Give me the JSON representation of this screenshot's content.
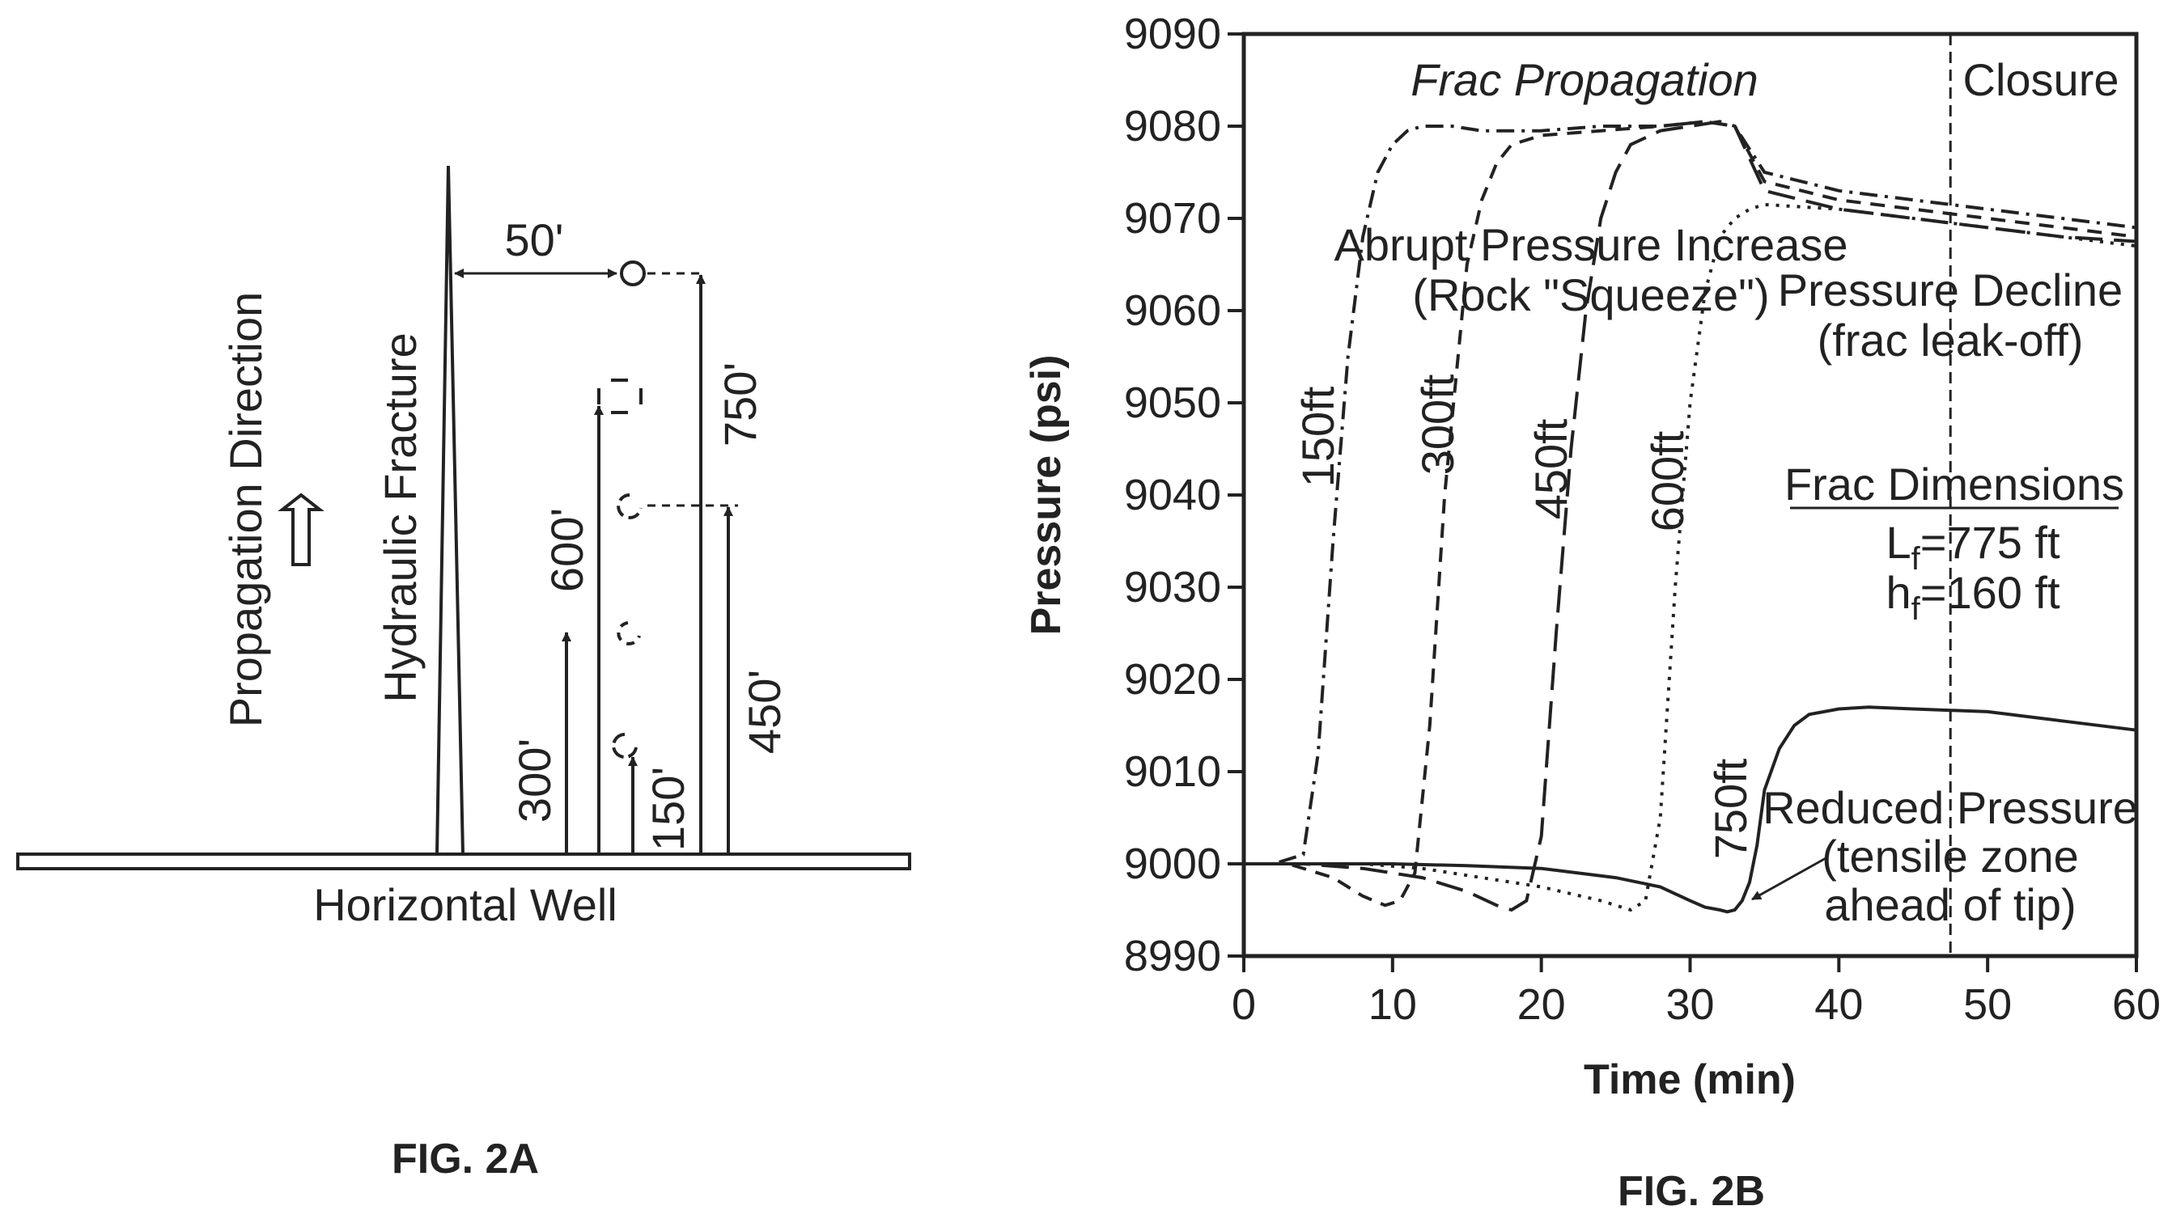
{
  "fig2a": {
    "propagation_direction": "Propagation Direction",
    "hydraulic_fracture": "Hydraulic Fracture",
    "horizontal_well": "Horizontal Well",
    "offset_label": "50'",
    "gauge_labels": [
      "150'",
      "300'",
      "450'",
      "600'",
      "750'"
    ],
    "caption": "FIG. 2A"
  },
  "fig2b": {
    "caption": "FIG. 2B",
    "annotations": {
      "frac_propagation": "Frac Propagation",
      "closure": "Closure",
      "abrupt_1": "Abrupt Pressure Increase",
      "abrupt_2": "(Rock \"Squeeze\")",
      "decline_1": "Pressure Decline",
      "decline_2": "(frac leak-off)",
      "dims_title": "Frac Dimensions",
      "lf_main": "L",
      "lf_sub": "f",
      "lf_val": "=775 ft",
      "hf_main": "h",
      "hf_sub": "f",
      "hf_val": "=160 ft",
      "reduced_1": "Reduced Pressure",
      "reduced_2": "(tensile zone",
      "reduced_3": "ahead of tip)"
    },
    "chart_data": {
      "type": "line",
      "xlabel": "Time (min)",
      "ylabel": "Pressure (psi)",
      "xlim": [
        0,
        60
      ],
      "ylim": [
        8990,
        9090
      ],
      "xticks": [
        0,
        10,
        20,
        30,
        40,
        50,
        60
      ],
      "yticks": [
        8990,
        9000,
        9010,
        9020,
        9030,
        9040,
        9050,
        9060,
        9070,
        9080,
        9090
      ],
      "closure_time": 47.5,
      "series": [
        {
          "name": "150ft",
          "dash": "dashdot",
          "x": [
            0,
            2,
            4,
            5,
            6,
            7,
            8,
            9,
            10,
            11,
            12,
            14,
            16,
            20,
            24,
            28,
            31,
            33,
            35,
            40,
            45,
            50,
            55,
            60
          ],
          "y": [
            9000,
            9000,
            9001,
            9012,
            9035,
            9055,
            9068,
            9075,
            9078,
            9079.5,
            9080,
            9080,
            9079.5,
            9079.5,
            9080,
            9080,
            9080.5,
            9080,
            9075,
            9073,
            9072,
            9071,
            9070,
            9069
          ]
        },
        {
          "name": "300ft",
          "dash": "dashed",
          "x": [
            0,
            3,
            6,
            8,
            9.5,
            10.5,
            11.5,
            12.5,
            13.5,
            15,
            16,
            17,
            18,
            20,
            24,
            28,
            31,
            33,
            35,
            40,
            45,
            50,
            55,
            60
          ],
          "y": [
            9000,
            9000,
            8998.5,
            8996.5,
            8995.5,
            8996,
            8999,
            9015,
            9040,
            9065,
            9072,
            9076,
            9078,
            9079,
            9079.5,
            9080,
            9080.5,
            9080,
            9074,
            9072,
            9071,
            9070,
            9069,
            9068
          ]
        },
        {
          "name": "450ft",
          "dash": "longdash",
          "x": [
            0,
            4,
            8,
            12,
            15,
            17,
            18,
            19,
            20,
            21,
            22,
            23,
            24,
            25,
            26,
            28,
            30,
            32,
            33,
            35,
            40,
            45,
            50,
            55,
            60
          ],
          "y": [
            9000,
            9000,
            8999.5,
            8998.5,
            8997,
            8995.5,
            8995,
            8996,
            9003,
            9025,
            9045,
            9060,
            9070,
            9075,
            9078,
            9079.5,
            9080,
            9080.5,
            9080,
            9073,
            9071,
            9070,
            9069,
            9068,
            9067.5
          ]
        },
        {
          "name": "600ft",
          "dash": "dotted",
          "x": [
            0,
            4,
            8,
            12,
            16,
            20,
            24,
            26,
            27,
            28,
            29,
            30,
            31,
            32,
            33,
            34,
            35,
            40,
            45,
            50,
            55,
            60
          ],
          "y": [
            9000,
            9000,
            9000,
            8999.5,
            8998.5,
            8997.5,
            8996,
            8995,
            8996,
            9005,
            9030,
            9050,
            9062,
            9068,
            9070,
            9071,
            9071.5,
            9071,
            9070,
            9069,
            9068,
            9067
          ]
        },
        {
          "name": "750ft",
          "dash": "solid",
          "x": [
            0,
            5,
            10,
            15,
            20,
            25,
            28,
            30,
            31,
            32,
            32.5,
            33,
            33.5,
            34,
            34.5,
            35,
            36,
            37,
            38,
            40,
            42,
            45,
            50,
            55,
            60
          ],
          "y": [
            9000,
            9000,
            9000,
            8999.8,
            8999.5,
            8998.5,
            8997.5,
            8996,
            8995.3,
            8995,
            8994.8,
            8995,
            8996,
            8998,
            9002,
            9008,
            9012.5,
            9015,
            9016.2,
            9016.8,
            9017,
            9016.8,
            9016.5,
            9015.5,
            9014.5
          ]
        }
      ]
    }
  }
}
